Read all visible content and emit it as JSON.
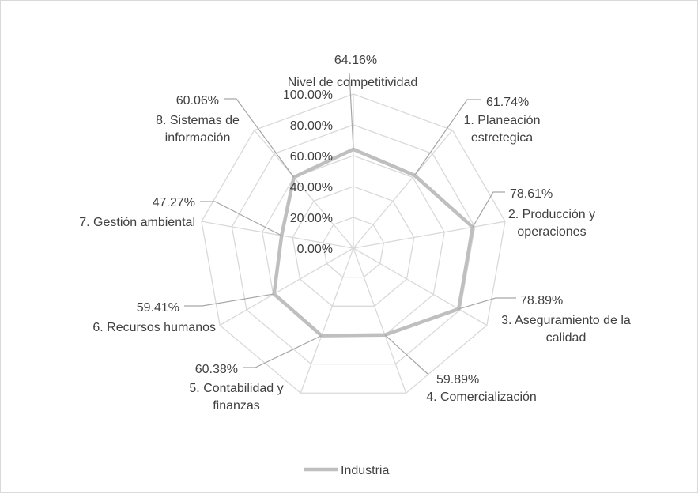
{
  "chart_data": {
    "type": "radar",
    "title": "",
    "categories": [
      "Nivel de competitividad",
      "1. Planeación estretegica",
      "2. Producción y operaciones",
      "3. Aseguramiento de la calidad",
      "4. Comercialización",
      "5. Contabilidad y finanzas",
      "6. Recursos humanos",
      "7. Gestión ambiental",
      "8. Sistemas de información"
    ],
    "series": [
      {
        "name": "Industria",
        "values": [
          64.16,
          61.74,
          78.61,
          78.89,
          59.89,
          60.38,
          59.41,
          47.27,
          60.06
        ],
        "labels": [
          "64.16%",
          "61.74%",
          "78.61%",
          "78.89%",
          "59.89%",
          "60.38%",
          "59.41%",
          "47.27%",
          "60.06%"
        ],
        "color": "#bfbfbf"
      }
    ],
    "radial_ticks": [
      "0.00%",
      "20.00%",
      "40.00%",
      "60.00%",
      "80.00%",
      "100.00%"
    ],
    "rlim": [
      0,
      100
    ],
    "grid": true,
    "legend_position": "bottom",
    "colors": {
      "grid": "#d9d9d9",
      "leader": "#a6a6a6",
      "text": "#404040"
    }
  }
}
